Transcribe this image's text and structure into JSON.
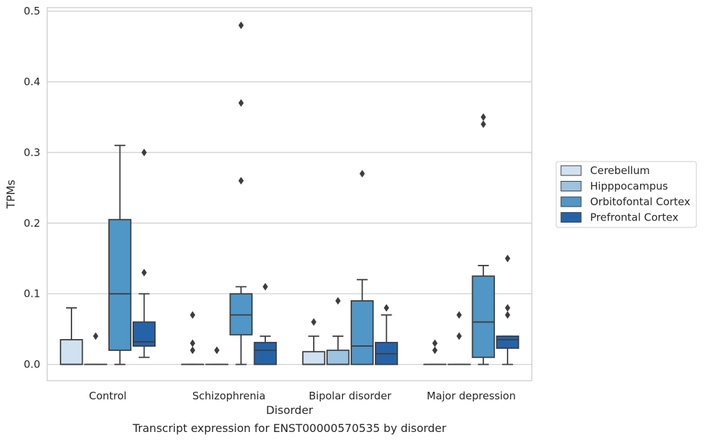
{
  "chart_data": {
    "type": "box",
    "caption": "Transcript expression for ENST00000570535 by disorder",
    "xlabel": "Disorder",
    "ylabel": "TPMs",
    "ylim": [
      -0.023,
      0.505
    ],
    "yticks": [
      "0.0",
      "0.1",
      "0.2",
      "0.3",
      "0.4",
      "0.5"
    ],
    "ytick_values": [
      0.0,
      0.1,
      0.2,
      0.3,
      0.4,
      0.5
    ],
    "grid": "horizontal",
    "legend_placement": "right",
    "categories": [
      "Control",
      "Schizophrenia",
      "Bipolar disorder",
      "Major depression"
    ],
    "series": [
      {
        "name": "Cerebellum",
        "color": "#d0e1f2",
        "boxes": [
          {
            "q1": 0.0,
            "median": 0.0,
            "q3": 0.035,
            "whislo": 0.0,
            "whishi": 0.08,
            "fliers": []
          },
          {
            "q1": 0.0,
            "median": 0.0,
            "q3": 0.0,
            "whislo": 0.0,
            "whishi": 0.0,
            "fliers": [
              0.02,
              0.03,
              0.07
            ]
          },
          {
            "q1": 0.0,
            "median": 0.0,
            "q3": 0.018,
            "whislo": 0.0,
            "whishi": 0.04,
            "fliers": [
              0.06
            ]
          },
          {
            "q1": 0.0,
            "median": 0.0,
            "q3": 0.0,
            "whislo": 0.0,
            "whishi": 0.0,
            "fliers": [
              0.02,
              0.03
            ]
          }
        ]
      },
      {
        "name": "Hipppocampus",
        "color": "#9cc3df",
        "boxes": [
          {
            "q1": 0.0,
            "median": 0.0,
            "q3": 0.0,
            "whislo": 0.0,
            "whishi": 0.0,
            "fliers": [
              0.04
            ]
          },
          {
            "q1": 0.0,
            "median": 0.0,
            "q3": 0.0,
            "whislo": 0.0,
            "whishi": 0.0,
            "fliers": [
              0.02
            ]
          },
          {
            "q1": 0.0,
            "median": 0.0,
            "q3": 0.02,
            "whislo": 0.0,
            "whishi": 0.04,
            "fliers": [
              0.09
            ]
          },
          {
            "q1": 0.0,
            "median": 0.0,
            "q3": 0.0,
            "whislo": 0.0,
            "whishi": 0.0,
            "fliers": [
              0.04,
              0.07
            ]
          }
        ]
      },
      {
        "name": "Orbitofontal Cortex",
        "color": "#5096c6",
        "boxes": [
          {
            "q1": 0.02,
            "median": 0.1,
            "q3": 0.205,
            "whislo": 0.0,
            "whishi": 0.31,
            "fliers": []
          },
          {
            "q1": 0.042,
            "median": 0.07,
            "q3": 0.1,
            "whislo": 0.0,
            "whishi": 0.11,
            "fliers": [
              0.26,
              0.37,
              0.48
            ]
          },
          {
            "q1": 0.0,
            "median": 0.026,
            "q3": 0.09,
            "whislo": 0.0,
            "whishi": 0.12,
            "fliers": [
              0.27
            ]
          },
          {
            "q1": 0.01,
            "median": 0.06,
            "q3": 0.125,
            "whislo": 0.0,
            "whishi": 0.14,
            "fliers": [
              0.34,
              0.35
            ]
          }
        ]
      },
      {
        "name": "Prefrontal Cortex",
        "color": "#2563a8",
        "boxes": [
          {
            "q1": 0.026,
            "median": 0.032,
            "q3": 0.06,
            "whislo": 0.01,
            "whishi": 0.1,
            "fliers": [
              0.13,
              0.3
            ]
          },
          {
            "q1": 0.0,
            "median": 0.02,
            "q3": 0.031,
            "whislo": 0.0,
            "whishi": 0.04,
            "fliers": [
              0.11
            ]
          },
          {
            "q1": 0.0,
            "median": 0.015,
            "q3": 0.031,
            "whislo": 0.0,
            "whishi": 0.07,
            "fliers": [
              0.08
            ]
          },
          {
            "q1": 0.023,
            "median": 0.035,
            "q3": 0.04,
            "whislo": 0.0,
            "whishi": 0.04,
            "fliers": [
              0.07,
              0.08,
              0.15
            ]
          }
        ]
      }
    ]
  }
}
